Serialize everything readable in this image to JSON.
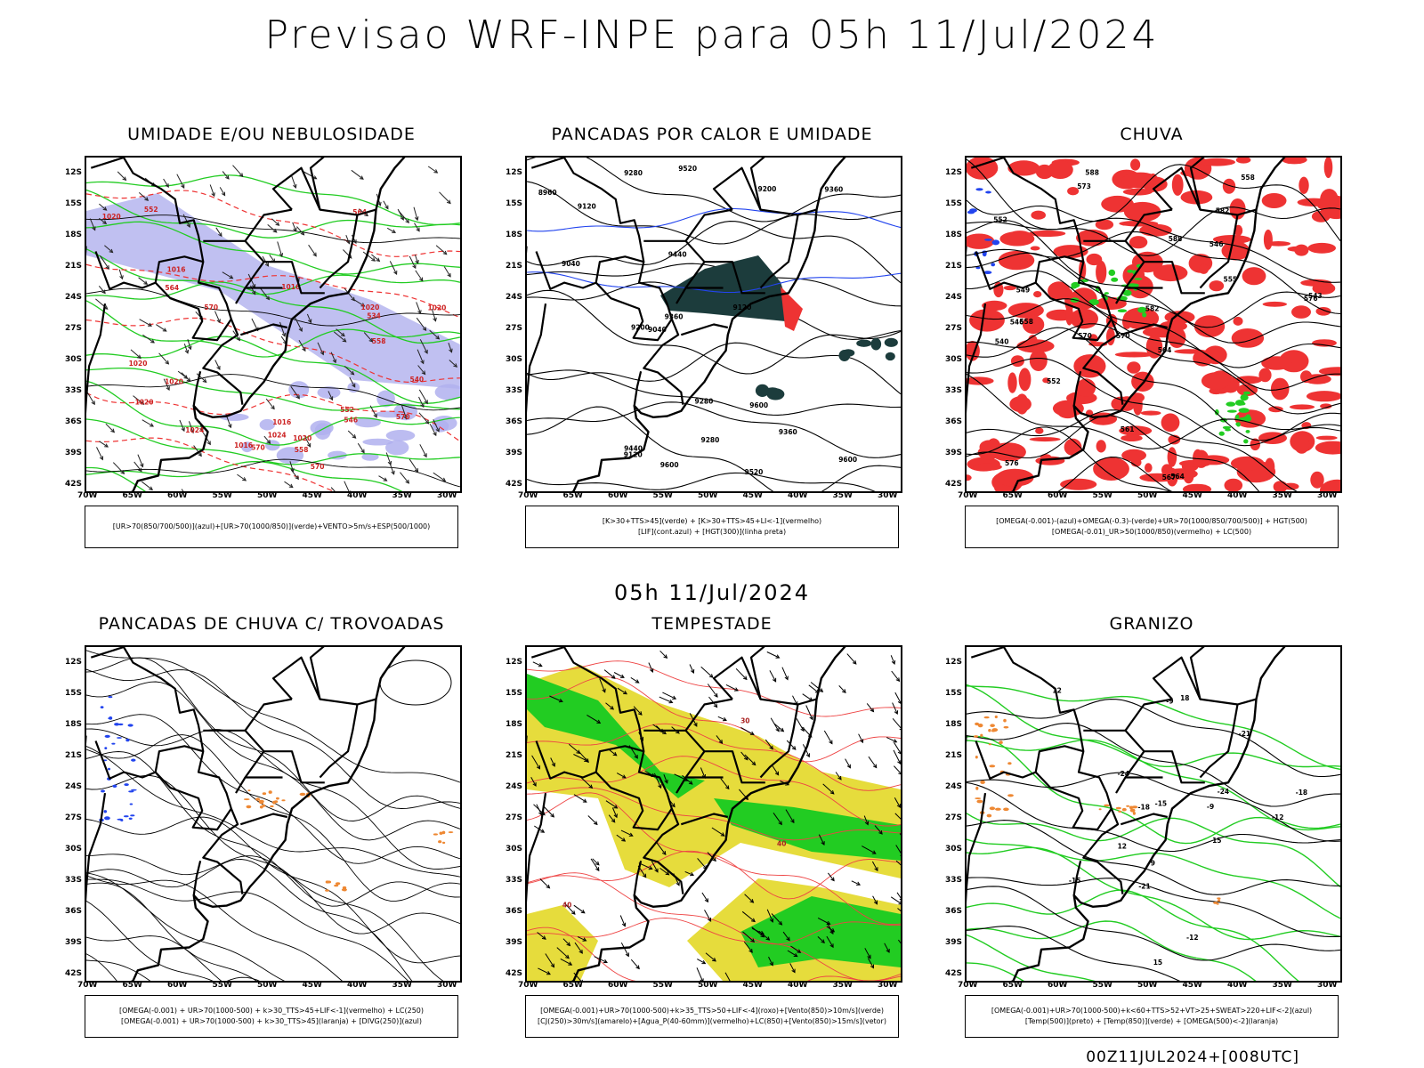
{
  "header": {
    "title": "Previsao WRF-INPE  para 05h 11/Jul/2024"
  },
  "mid_label": "05h 11/Jul/2024",
  "footer": "00Z11JUL2024+[008UTC]",
  "axes": {
    "lat_ticks": [
      "12S",
      "15S",
      "18S",
      "21S",
      "24S",
      "27S",
      "30S",
      "33S",
      "36S",
      "39S",
      "42S"
    ],
    "lon_ticks": [
      "70W",
      "65W",
      "60W",
      "55W",
      "50W",
      "45W",
      "40W",
      "35W",
      "30W"
    ]
  },
  "colors": {
    "green": "#22cc22",
    "red": "#ee3333",
    "blue": "#2244ee",
    "lavender": "#b0b0ee",
    "darkteal": "#1c3c3c",
    "yellow": "#e6dc3c",
    "orange": "#ee8833",
    "black": "#000000"
  },
  "panels": [
    {
      "id": "umidade",
      "title": "UMIDADE E/OU NEBULOSIDADE",
      "legend": [
        "[UR>70(850/700/500)](azul)+[UR>70(1000/850)](verde)+VENTO>5m/s+ESP(500/1000)"
      ],
      "contour_labels": [
        "1016",
        "1016",
        "1016",
        "1020",
        "1020",
        "1020",
        "1024",
        "1020",
        "1020",
        "1016",
        "1020",
        "570",
        "570",
        "570",
        "564",
        "558",
        "552",
        "546",
        "540",
        "534",
        "552",
        "558",
        "564",
        "570",
        "1020",
        "1024"
      ]
    },
    {
      "id": "pancadas_calor",
      "title": "PANCADAS POR CALOR E UMIDADE",
      "legend": [
        "[K>30+TTS>45](verde) + [K>30+TTS>45+LI<-1](vermelho)",
        "[LIF](cont.azul) + [HGT(300)](linha preta)"
      ],
      "contour_labels": [
        "9600",
        "9520",
        "9440",
        "9360",
        "9280",
        "9120",
        "9200",
        "9600",
        "9520",
        "9440",
        "9360",
        "9280",
        "9360",
        "9280",
        "9200",
        "9120",
        "9040",
        "9120",
        "9040",
        "8960",
        "9600"
      ]
    },
    {
      "id": "chuva",
      "title": "CHUVA",
      "legend": [
        "[OMEGA(-0.001)-(azul)+OMEGA(-0.3)-(verde)+UR>70(1000/850/700/500)] + HGT(500)",
        "[OMEGA(-0.01)_UR>50(1000/850)(vermelho) + LC(500)"
      ],
      "contour_labels": [
        "588",
        "582",
        "576",
        "570",
        "564",
        "558",
        "552",
        "546",
        "540",
        "588",
        "582",
        "576",
        "573",
        "570",
        "567",
        "564",
        "561",
        "558",
        "555",
        "552",
        "549",
        "546",
        "543"
      ]
    },
    {
      "id": "pancadas_trovoadas",
      "title": "PANCADAS DE CHUVA C/ TROVOADAS",
      "legend": [
        "[OMEGA(-0.001) + UR>70(1000-500) + k>30_TTS>45+LIF<-1](vermelho) + LC(250)",
        "[OMEGA(-0.001) + UR>70(1000-500) + k>30_TTS>45](laranja) + [DIVG(250)](azul)"
      ],
      "contour_labels": []
    },
    {
      "id": "tempestade",
      "title": "TEMPESTADE",
      "legend": [
        "[OMEGA(-0.001)+UR>70(1000-500)+k>35_TTS>50+LIF<-4](roxo)+[Vento(850)>10m/s](verde)",
        "[CJ(250)>30m/s](amarelo)+[Agua_P(40-60mm)](vermelho)+LC(850)+[Vento(850)>15m/s](vetor)"
      ],
      "contour_labels": [
        "40",
        "40",
        "30"
      ]
    },
    {
      "id": "granizo",
      "title": "GRANIZO",
      "legend": [
        "[OMEGA(-0.001)+UR>70(1000-500)+k<60+TTS>52+VT>25+SWEAT>220+LIF<-2](azul)",
        "[Temp(500)](preto) + [Temp(850)](verde) + [OMEGA(500)<-2](laranja)"
      ],
      "contour_labels": [
        "-12",
        "-12",
        "-15",
        "-15",
        "-18",
        "-18",
        "-21",
        "-21",
        "-24",
        "-24",
        "-9",
        "-9",
        "12",
        "15",
        "18",
        "12",
        "15",
        "9"
      ]
    }
  ]
}
